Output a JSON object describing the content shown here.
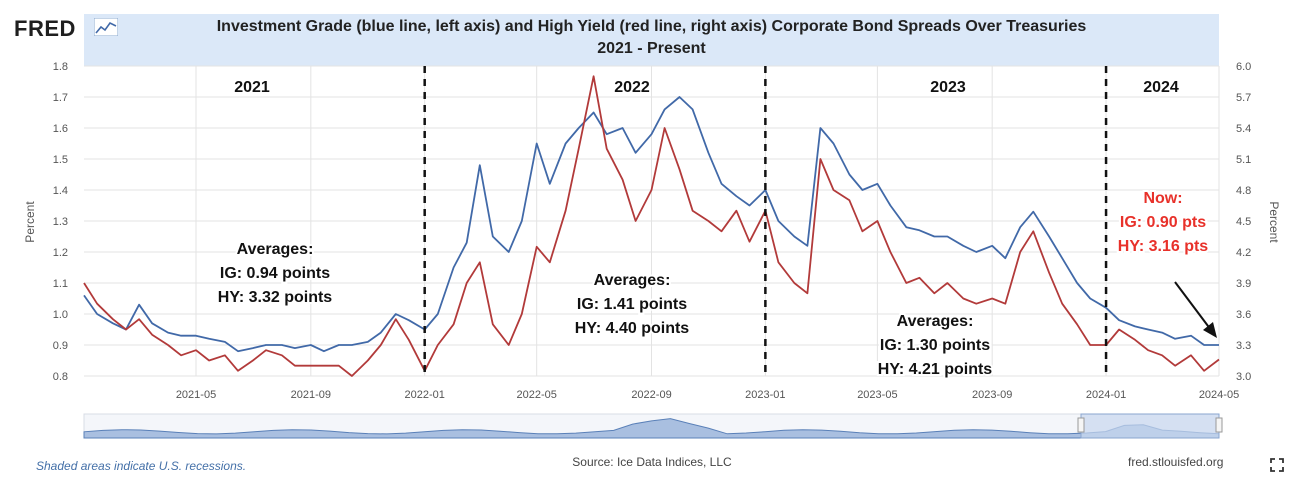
{
  "logo": "FRED",
  "logo_icon": "chart-line-icon",
  "title_line1": "Investment Grade (blue line, left axis) and High Yield (red line, right axis) Corporate Bond Spreads Over Treasuries",
  "title_line2": "2021 - Present",
  "footer": {
    "recession_note": "Shaded areas indicate U.S. recessions.",
    "source": "Source: Ice Data Indices, LLC",
    "site": "fred.stlouisfed.org",
    "fullscreen_icon": "fullscreen-icon"
  },
  "colors": {
    "ig_line": "#4169a8",
    "hy_line": "#b23a3a",
    "now_annotation": "#e8312a",
    "title_band": "#dbe8f8"
  },
  "chart_data": {
    "type": "line",
    "left_axis": {
      "label": "Percent",
      "range": [
        0.8,
        1.8
      ],
      "ticks": [
        "0.8",
        "0.9",
        "1.0",
        "1.1",
        "1.2",
        "1.3",
        "1.4",
        "1.5",
        "1.6",
        "1.7",
        "1.8"
      ]
    },
    "right_axis": {
      "label": "Percent",
      "range": [
        3.0,
        6.0
      ],
      "ticks": [
        "3.0",
        "3.3",
        "3.6",
        "3.9",
        "4.2",
        "4.5",
        "4.8",
        "5.1",
        "5.4",
        "5.7",
        "6.0"
      ]
    },
    "x_ticks": [
      "2021-05",
      "2021-09",
      "2022-01",
      "2022-05",
      "2022-09",
      "2023-01",
      "2023-05",
      "2023-09",
      "2024-01",
      "2024-05"
    ],
    "x_range": [
      "2021-01-01",
      "2024-05-01"
    ],
    "grid": true,
    "year_labels": [
      "2021",
      "2022",
      "2023",
      "2024"
    ],
    "year_dividers": [
      "2022-01",
      "2023-01",
      "2024-01"
    ],
    "annotations": {
      "a2021": [
        "Averages:",
        "IG: 0.94 points",
        "HY: 3.32 points"
      ],
      "a2022": [
        "Averages:",
        "IG: 1.41 points",
        "HY: 4.40 points"
      ],
      "a2023": [
        "Averages:",
        "IG: 1.30 points",
        "HY: 4.21 points"
      ],
      "now": [
        "Now:",
        "IG: 0.90 pts",
        "HY: 3.16 pts"
      ]
    },
    "series": [
      {
        "axis": "left",
        "x": [
          "2021-01-01",
          "2021-01-15",
          "2021-02-01",
          "2021-02-15",
          "2021-03-01",
          "2021-03-15",
          "2021-04-01",
          "2021-04-15",
          "2021-05-01",
          "2021-05-15",
          "2021-06-01",
          "2021-06-15",
          "2021-07-01",
          "2021-07-15",
          "2021-08-01",
          "2021-08-15",
          "2021-09-01",
          "2021-09-15",
          "2021-10-01",
          "2021-10-15",
          "2021-11-01",
          "2021-11-15",
          "2021-12-01",
          "2021-12-15",
          "2022-01-01",
          "2022-01-15",
          "2022-02-01",
          "2022-02-15",
          "2022-03-01",
          "2022-03-15",
          "2022-04-01",
          "2022-04-15",
          "2022-05-01",
          "2022-05-15",
          "2022-06-01",
          "2022-06-15",
          "2022-07-01",
          "2022-07-15",
          "2022-08-01",
          "2022-08-15",
          "2022-09-01",
          "2022-09-15",
          "2022-10-01",
          "2022-10-15",
          "2022-11-01",
          "2022-11-15",
          "2022-12-01",
          "2022-12-15",
          "2023-01-01",
          "2023-01-15",
          "2023-02-01",
          "2023-02-15",
          "2023-03-01",
          "2023-03-15",
          "2023-04-01",
          "2023-04-15",
          "2023-05-01",
          "2023-05-15",
          "2023-06-01",
          "2023-06-15",
          "2023-07-01",
          "2023-07-15",
          "2023-08-01",
          "2023-08-15",
          "2023-09-01",
          "2023-09-15",
          "2023-10-01",
          "2023-10-15",
          "2023-11-01",
          "2023-11-15",
          "2023-12-01",
          "2023-12-15",
          "2024-01-01",
          "2024-01-15",
          "2024-02-01",
          "2024-02-15",
          "2024-03-01",
          "2024-03-15",
          "2024-04-01",
          "2024-04-15",
          "2024-05-01"
        ],
        "values": [
          1.06,
          1.0,
          0.97,
          0.95,
          1.03,
          0.97,
          0.94,
          0.93,
          0.93,
          0.92,
          0.91,
          0.88,
          0.89,
          0.9,
          0.9,
          0.89,
          0.9,
          0.88,
          0.9,
          0.9,
          0.91,
          0.94,
          1.0,
          0.98,
          0.95,
          1.0,
          1.15,
          1.23,
          1.48,
          1.25,
          1.2,
          1.3,
          1.55,
          1.42,
          1.55,
          1.6,
          1.65,
          1.58,
          1.6,
          1.52,
          1.58,
          1.66,
          1.7,
          1.66,
          1.52,
          1.42,
          1.38,
          1.35,
          1.4,
          1.3,
          1.25,
          1.22,
          1.6,
          1.55,
          1.45,
          1.4,
          1.42,
          1.35,
          1.28,
          1.27,
          1.25,
          1.25,
          1.22,
          1.2,
          1.22,
          1.18,
          1.28,
          1.33,
          1.25,
          1.18,
          1.1,
          1.05,
          1.02,
          0.98,
          0.96,
          0.95,
          0.94,
          0.92,
          0.93,
          0.9,
          0.9
        ]
      },
      {
        "axis": "right",
        "x": [
          "2021-01-01",
          "2021-01-15",
          "2021-02-01",
          "2021-02-15",
          "2021-03-01",
          "2021-03-15",
          "2021-04-01",
          "2021-04-15",
          "2021-05-01",
          "2021-05-15",
          "2021-06-01",
          "2021-06-15",
          "2021-07-01",
          "2021-07-15",
          "2021-08-01",
          "2021-08-15",
          "2021-09-01",
          "2021-09-15",
          "2021-10-01",
          "2021-10-15",
          "2021-11-01",
          "2021-11-15",
          "2021-12-01",
          "2021-12-15",
          "2022-01-01",
          "2022-01-15",
          "2022-02-01",
          "2022-02-15",
          "2022-03-01",
          "2022-03-15",
          "2022-04-01",
          "2022-04-15",
          "2022-05-01",
          "2022-05-15",
          "2022-06-01",
          "2022-06-15",
          "2022-07-01",
          "2022-07-15",
          "2022-08-01",
          "2022-08-15",
          "2022-09-01",
          "2022-09-15",
          "2022-10-01",
          "2022-10-15",
          "2022-11-01",
          "2022-11-15",
          "2022-12-01",
          "2022-12-15",
          "2023-01-01",
          "2023-01-15",
          "2023-02-01",
          "2023-02-15",
          "2023-03-01",
          "2023-03-15",
          "2023-04-01",
          "2023-04-15",
          "2023-05-01",
          "2023-05-15",
          "2023-06-01",
          "2023-06-15",
          "2023-07-01",
          "2023-07-15",
          "2023-08-01",
          "2023-08-15",
          "2023-09-01",
          "2023-09-15",
          "2023-10-01",
          "2023-10-15",
          "2023-11-01",
          "2023-11-15",
          "2023-12-01",
          "2023-12-15",
          "2024-01-01",
          "2024-01-15",
          "2024-02-01",
          "2024-02-15",
          "2024-03-01",
          "2024-03-15",
          "2024-04-01",
          "2024-04-15",
          "2024-05-01"
        ],
        "values": [
          3.9,
          3.7,
          3.55,
          3.45,
          3.55,
          3.4,
          3.3,
          3.2,
          3.25,
          3.15,
          3.2,
          3.05,
          3.15,
          3.25,
          3.2,
          3.1,
          3.1,
          3.1,
          3.1,
          3.0,
          3.15,
          3.3,
          3.55,
          3.35,
          3.05,
          3.3,
          3.5,
          3.9,
          4.1,
          3.5,
          3.3,
          3.6,
          4.25,
          4.1,
          4.6,
          5.2,
          5.9,
          5.2,
          4.9,
          4.5,
          4.8,
          5.4,
          5.0,
          4.6,
          4.5,
          4.4,
          4.6,
          4.3,
          4.6,
          4.1,
          3.9,
          3.8,
          5.1,
          4.8,
          4.7,
          4.4,
          4.5,
          4.2,
          3.9,
          3.95,
          3.8,
          3.9,
          3.75,
          3.7,
          3.75,
          3.7,
          4.2,
          4.4,
          4.0,
          3.7,
          3.5,
          3.3,
          3.3,
          3.45,
          3.35,
          3.25,
          3.2,
          3.1,
          3.2,
          3.05,
          3.16
        ]
      }
    ]
  }
}
